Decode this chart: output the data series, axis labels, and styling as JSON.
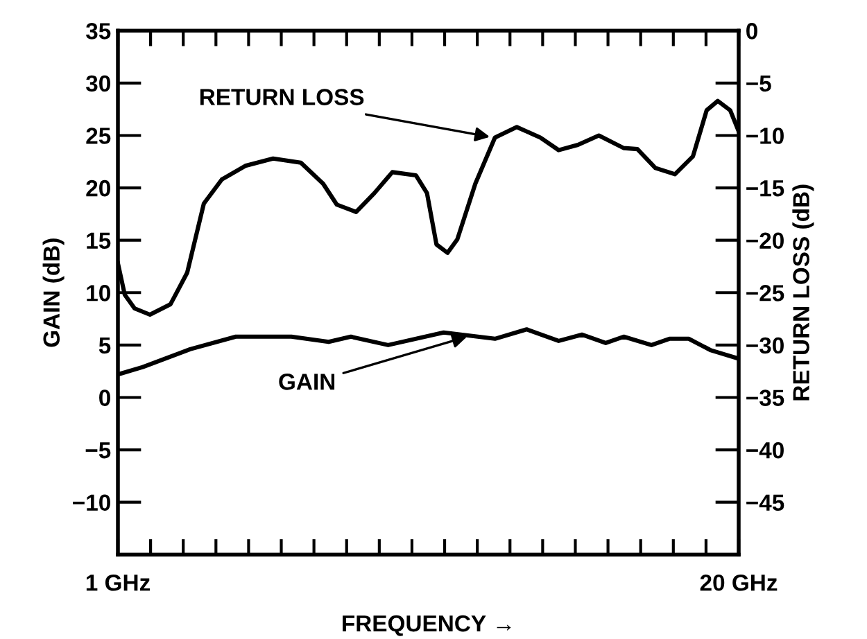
{
  "chart_data": {
    "type": "line",
    "xlabel": "FREQUENCY →",
    "ylabel": "GAIN (dB)",
    "y2label": "RETURN LOSS (dB)",
    "xlim": [
      1,
      20
    ],
    "xticks": [
      {
        "value": 1,
        "label": "1 GHz"
      },
      {
        "value": 2,
        "label": null
      },
      {
        "value": 3,
        "label": null
      },
      {
        "value": 4,
        "label": null
      },
      {
        "value": 5,
        "label": null
      },
      {
        "value": 6,
        "label": null
      },
      {
        "value": 7,
        "label": null
      },
      {
        "value": 8,
        "label": null
      },
      {
        "value": 9,
        "label": null
      },
      {
        "value": 10,
        "label": null
      },
      {
        "value": 11,
        "label": null
      },
      {
        "value": 12,
        "label": null
      },
      {
        "value": 13,
        "label": null
      },
      {
        "value": 14,
        "label": null
      },
      {
        "value": 15,
        "label": null
      },
      {
        "value": 16,
        "label": null
      },
      {
        "value": 17,
        "label": null
      },
      {
        "value": 18,
        "label": null
      },
      {
        "value": 19,
        "label": null
      },
      {
        "value": 20,
        "label": "20 GHz"
      }
    ],
    "ylim": [
      -15,
      35
    ],
    "yticks": [
      {
        "value": -10,
        "label": "−10"
      },
      {
        "value": -5,
        "label": "−5"
      },
      0,
      5,
      10,
      15,
      20,
      25,
      30,
      35
    ],
    "y2lim": [
      -50,
      0
    ],
    "y2ticks": [
      {
        "value": -45,
        "label": "−45"
      },
      {
        "value": -40,
        "label": "−40"
      },
      {
        "value": -35,
        "label": "−35"
      },
      {
        "value": -30,
        "label": "−30"
      },
      {
        "value": -25,
        "label": "−25"
      },
      {
        "value": -20,
        "label": "−20"
      },
      {
        "value": -15,
        "label": "−15"
      },
      {
        "value": -10,
        "label": "−10"
      },
      {
        "value": -5,
        "label": "−5"
      },
      0
    ],
    "grid": false,
    "legend": false,
    "line_style": "solid",
    "marker": "none",
    "series": [
      {
        "color": "#000000",
        "axis": "y2",
        "x": [
          1.0,
          1.21,
          1.51,
          1.98,
          2.61,
          3.12,
          3.63,
          4.18,
          4.9,
          5.75,
          6.6,
          7.28,
          7.7,
          8.29,
          8.85,
          9.4,
          10.12,
          10.46,
          10.75,
          11.09,
          11.39,
          11.94,
          12.54,
          13.21,
          13.93,
          14.49,
          15.08,
          15.72,
          16.48,
          16.9,
          17.45,
          18.05,
          18.6,
          19.02,
          19.36,
          19.74,
          20.0
        ],
        "values": [
          -22.2,
          -25.2,
          -26.5,
          -27.1,
          -26.1,
          -23.1,
          -16.5,
          -14.2,
          -12.9,
          -12.2,
          -12.6,
          -14.6,
          -16.6,
          -17.3,
          -15.5,
          -13.5,
          -13.8,
          -15.5,
          -20.4,
          -21.2,
          -19.9,
          -14.6,
          -10.2,
          -9.2,
          -10.2,
          -11.4,
          -10.9,
          -10.0,
          -11.2,
          -11.3,
          -13.1,
          -13.7,
          -12.0,
          -7.6,
          -6.7,
          -7.6,
          -9.6
        ]
      },
      {
        "color": "#000000",
        "x": [
          1.0,
          1.76,
          3.21,
          4.61,
          6.31,
          7.45,
          8.13,
          9.27,
          10.97,
          12.54,
          13.51,
          14.49,
          15.21,
          15.93,
          16.48,
          17.33,
          17.88,
          18.47,
          19.15,
          20.0
        ],
        "values": [
          2.2,
          2.9,
          4.6,
          5.8,
          5.8,
          5.3,
          5.8,
          5.0,
          6.2,
          5.6,
          6.5,
          5.4,
          6.0,
          5.2,
          5.8,
          5.0,
          5.6,
          5.6,
          4.5,
          3.7
        ]
      }
    ],
    "annotations": [
      {
        "text": "RETURN LOSS",
        "x": 12.5,
        "y": 24.8
      },
      {
        "text": "GAIN",
        "x": 11.8,
        "y": 5.9
      }
    ]
  }
}
